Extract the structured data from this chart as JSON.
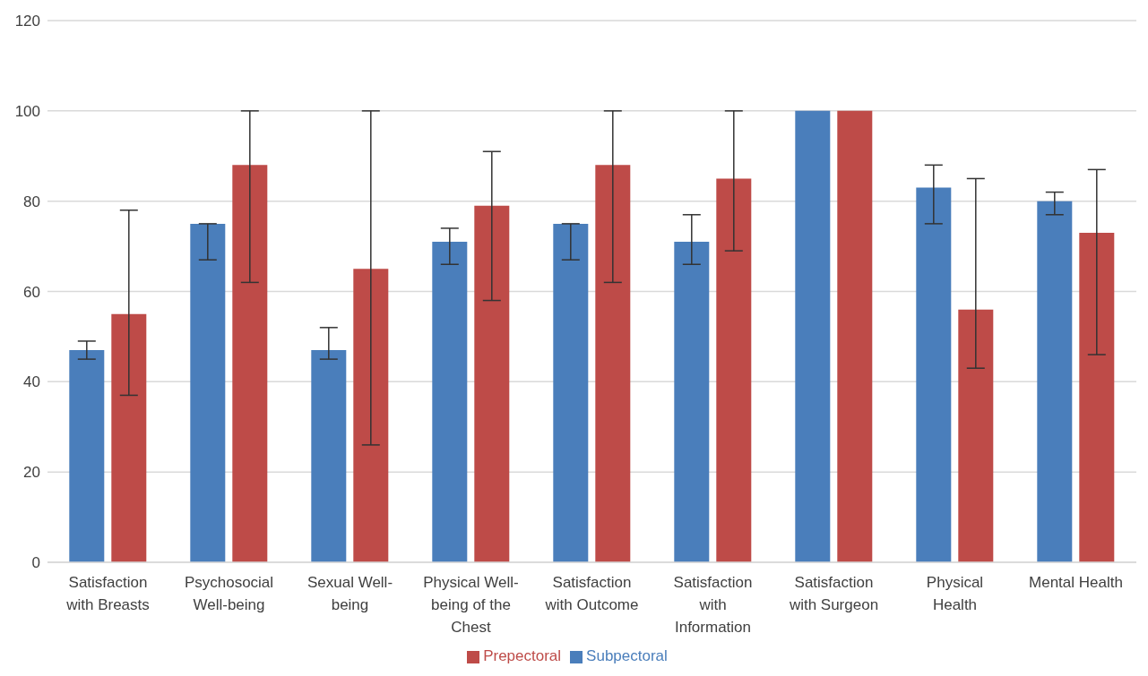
{
  "chart_data": {
    "type": "bar",
    "categories": [
      "Satisfaction with Breasts",
      "Psychosocial Well-being",
      "Sexual Well-being",
      "Physical Well-being of the Chest",
      "Satisfaction with Outcome",
      "Satisfaction with Information",
      "Satisfaction with Surgeon",
      "Physical Health",
      "Mental Health"
    ],
    "series": [
      {
        "name": "Subpectoral",
        "color": "#4a7ebb",
        "values": [
          47,
          75,
          47,
          71,
          75,
          71,
          100,
          83,
          80
        ],
        "errors": [
          [
            45,
            49
          ],
          [
            67,
            75
          ],
          [
            45,
            52
          ],
          [
            66,
            74
          ],
          [
            67,
            75
          ],
          [
            66,
            77
          ],
          null,
          [
            75,
            88
          ],
          [
            77,
            82
          ]
        ]
      },
      {
        "name": "Prepectoral",
        "color": "#be4b48",
        "values": [
          55,
          88,
          65,
          79,
          88,
          85,
          100,
          56,
          73
        ],
        "errors": [
          [
            37,
            78
          ],
          [
            62,
            100
          ],
          [
            26,
            100
          ],
          [
            58,
            91
          ],
          [
            62,
            100
          ],
          [
            69,
            100
          ],
          null,
          [
            43,
            85
          ],
          [
            46,
            87
          ]
        ]
      }
    ],
    "ylim": [
      0,
      120
    ],
    "yticks": [
      0,
      20,
      40,
      60,
      80,
      100,
      120
    ],
    "grid": "y",
    "legend": "bottom"
  }
}
